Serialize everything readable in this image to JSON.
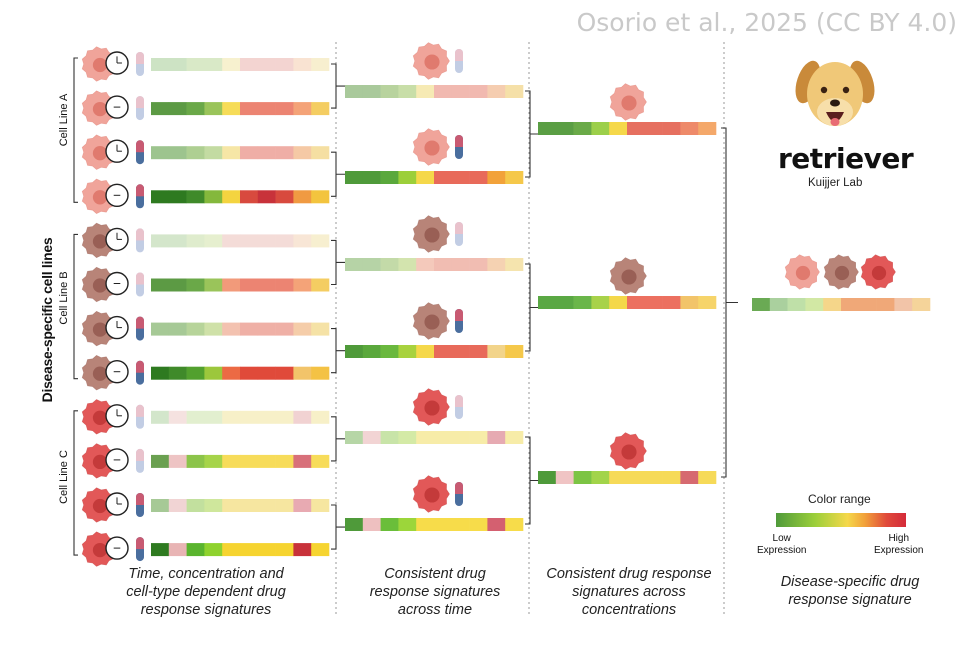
{
  "watermark": "Osorio et al., 2025 (CC BY 4.0)",
  "logo": {
    "name": "retriever",
    "lab": "Kuijjer Lab",
    "icon": "dog-icon"
  },
  "axis_label": "Disease-specific cell lines",
  "cell_lines": [
    {
      "label": "Cell Line A",
      "color": "#f0a49a",
      "nucleus": "#e07a6e"
    },
    {
      "label": "Cell Line B",
      "color": "#b88478",
      "nucleus": "#995f55"
    },
    {
      "label": "Cell Line C",
      "color": "#e25858",
      "nucleus": "#c43a3a"
    }
  ],
  "color_range": {
    "title": "Color range",
    "low_label": "Low\nExpression",
    "high_label": "High\nExpression",
    "stops": [
      "#4f9a3a",
      "#9ccf3a",
      "#f5d84a",
      "#f2a23a",
      "#e04a3a",
      "#d42a3a"
    ]
  },
  "captions": [
    "Time, concentration and\ncell-type dependent drug\nresponse signatures",
    "Consistent drug\nresponse signatures\nacross time",
    "Consistent drug response\nsignatures across\nconcentrations",
    "Disease-specific drug\nresponse signature"
  ],
  "stage1_rows": [
    {
      "line": 0,
      "conc": "low",
      "time": "early",
      "colors": [
        "#cde3c4",
        "#cde3c4",
        "#d9e9c7",
        "#d9e9c7",
        "#f7f1cf",
        "#f3d4d1",
        "#f3d4d1",
        "#f3d4d1",
        "#f9e3d2",
        "#f7efcf"
      ]
    },
    {
      "line": 0,
      "conc": "low",
      "time": "late",
      "colors": [
        "#5c9a44",
        "#5c9a44",
        "#6aa848",
        "#9ac45a",
        "#f6dc58",
        "#ec8472",
        "#ec8472",
        "#ec8472",
        "#f4a378",
        "#f4cd62"
      ]
    },
    {
      "line": 0,
      "conc": "high",
      "time": "early",
      "colors": [
        "#9dc48e",
        "#9dc48e",
        "#aecf92",
        "#c3dba2",
        "#f6e6a6",
        "#efaea6",
        "#efaea6",
        "#efaea6",
        "#f5c9a5",
        "#f5dfa2"
      ]
    },
    {
      "line": 0,
      "conc": "high",
      "time": "late",
      "colors": [
        "#2e7a20",
        "#2e7a20",
        "#3f8a2a",
        "#84b83c",
        "#f4d440",
        "#d84a3e",
        "#c8323a",
        "#d84a3e",
        "#f09a42",
        "#f3c43e"
      ]
    },
    {
      "line": 1,
      "conc": "low",
      "time": "early",
      "colors": [
        "#d4e6cb",
        "#d4e6cb",
        "#dfeccd",
        "#e6efcf",
        "#f4dcd8",
        "#f4dcd8",
        "#f4dcd8",
        "#f4dcd8",
        "#f8e6d6",
        "#f7efd0"
      ]
    },
    {
      "line": 1,
      "conc": "low",
      "time": "late",
      "colors": [
        "#5c9a44",
        "#5c9a44",
        "#6aa848",
        "#9ac45a",
        "#f29a7a",
        "#ec8472",
        "#ec8472",
        "#ec8472",
        "#f4a378",
        "#f4cd62"
      ]
    },
    {
      "line": 1,
      "conc": "high",
      "time": "early",
      "colors": [
        "#a6c996",
        "#a6c996",
        "#b7d49a",
        "#cfe1a8",
        "#f3c2b0",
        "#efb0a6",
        "#efb0a6",
        "#efb0a6",
        "#f5cda9",
        "#f5e2a6"
      ]
    },
    {
      "line": 1,
      "conc": "high",
      "time": "late",
      "colors": [
        "#2e7a20",
        "#3f8a2a",
        "#52a02e",
        "#9cc73c",
        "#ec6a44",
        "#e04a3a",
        "#e04a3a",
        "#e04a3a",
        "#f2c46a",
        "#f4c244"
      ]
    },
    {
      "line": 2,
      "conc": "low",
      "time": "early",
      "colors": [
        "#d3e6cb",
        "#f5e2e0",
        "#e2efcf",
        "#e2efcf",
        "#f7f0c8",
        "#f7f0c8",
        "#f7f0c8",
        "#f7f0c8",
        "#f1d2d2",
        "#f7f0c8"
      ]
    },
    {
      "line": 2,
      "conc": "low",
      "time": "late",
      "colors": [
        "#6aa050",
        "#eec4c4",
        "#8cc44a",
        "#a6d44a",
        "#f7dc5a",
        "#f7dc5a",
        "#f7dc5a",
        "#f7dc5a",
        "#d8707a",
        "#f7dc5a"
      ]
    },
    {
      "line": 2,
      "conc": "high",
      "time": "early",
      "colors": [
        "#a6c996",
        "#f1d4d4",
        "#c2e09e",
        "#cfe79c",
        "#f6e6a0",
        "#f6e6a0",
        "#f6e6a0",
        "#f6e6a0",
        "#e8aab2",
        "#f6e6a0"
      ]
    },
    {
      "line": 2,
      "conc": "high",
      "time": "late",
      "colors": [
        "#2e7a20",
        "#e8b4b4",
        "#5ab42e",
        "#8fd22e",
        "#f6d430",
        "#f6d430",
        "#f6d430",
        "#f6d430",
        "#c8323a",
        "#f6d430"
      ]
    }
  ],
  "stage2_rows": [
    {
      "line": 0,
      "conc": "low",
      "colors": [
        "#a9c99b",
        "#a9c99b",
        "#b8d39e",
        "#c8dea8",
        "#f6eab4",
        "#f1b9b0",
        "#f1b9b0",
        "#f1b9b0",
        "#f5cdb0",
        "#f5e0a8"
      ]
    },
    {
      "line": 0,
      "conc": "high",
      "colors": [
        "#4f9a3a",
        "#4f9a3a",
        "#5aa83c",
        "#9ccf3a",
        "#f5d84a",
        "#e86a5a",
        "#e86a5a",
        "#e86a5a",
        "#f2a23a",
        "#f5c84a"
      ]
    },
    {
      "line": 1,
      "conc": "low",
      "colors": [
        "#b6d3a6",
        "#b6d3a6",
        "#c3daa8",
        "#d3e4ae",
        "#f4c9bb",
        "#f1bdb2",
        "#f1bdb2",
        "#f1bdb2",
        "#f5d2b2",
        "#f5e4ae"
      ]
    },
    {
      "line": 1,
      "conc": "high",
      "colors": [
        "#4f9a3a",
        "#5aa83c",
        "#6ab83e",
        "#a8d23e",
        "#f5d84a",
        "#e86a5a",
        "#e86a5a",
        "#e86a5a",
        "#f2d48a",
        "#f5c84a"
      ]
    },
    {
      "line": 2,
      "conc": "low",
      "colors": [
        "#b6d6a6",
        "#f2d4d4",
        "#c8e4a8",
        "#d4eaa6",
        "#f7eca8",
        "#f7eca8",
        "#f7eca8",
        "#f7eca8",
        "#e6aab2",
        "#f7eca8"
      ]
    },
    {
      "line": 2,
      "conc": "high",
      "colors": [
        "#4f9a3a",
        "#eec0c0",
        "#6abe3a",
        "#9cd63a",
        "#f7dc4a",
        "#f7dc4a",
        "#f7dc4a",
        "#f7dc4a",
        "#d46070",
        "#f7dc4a"
      ]
    }
  ],
  "stage3_rows": [
    {
      "line": 0,
      "colors": [
        "#5a9e44",
        "#5a9e44",
        "#6aaa48",
        "#9ccf4a",
        "#f5d84a",
        "#e67060",
        "#e67060",
        "#e67060",
        "#ee8a6a",
        "#f4a86a"
      ]
    },
    {
      "line": 1,
      "colors": [
        "#5aa844",
        "#5aa844",
        "#6ab64a",
        "#a8d24a",
        "#f4d84a",
        "#ec7060",
        "#ec7060",
        "#ec7060",
        "#f2c46a",
        "#f6d46a"
      ]
    },
    {
      "line": 2,
      "colors": [
        "#4e9a3a",
        "#f0c4c4",
        "#7cc444",
        "#a2d44a",
        "#f6da58",
        "#f6da58",
        "#f6da58",
        "#f6da58",
        "#d66a70",
        "#f6da58"
      ]
    }
  ],
  "final_row": {
    "colors": [
      "#6aaa54",
      "#aad09e",
      "#bfe0a8",
      "#d2e8a4",
      "#f5d68a",
      "#f0a878",
      "#f0a878",
      "#f0a878",
      "#f2c4a8",
      "#f5d49a"
    ]
  }
}
